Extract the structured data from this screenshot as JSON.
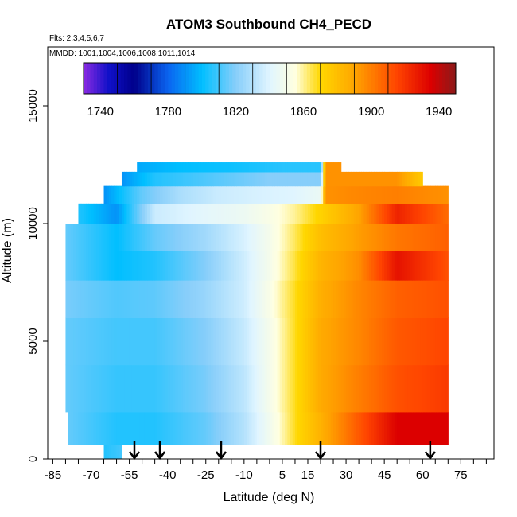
{
  "chart_data": {
    "type": "heatmap",
    "title": "ATOM3 Southbound CH4_PECD",
    "subtitle_flights": "Flts: 2,3,4,5,6,7",
    "subtitle_dates": "MMDD: 1001,1004,1006,1008,1011,1014",
    "xlabel": "Latitude (deg N)",
    "ylabel": "Altitude (m)",
    "xlim": [
      -87,
      88
    ],
    "ylim": [
      0,
      17500
    ],
    "x_ticks": [
      -85,
      -70,
      -55,
      -40,
      -25,
      -10,
      5,
      15,
      30,
      45,
      60,
      75
    ],
    "x_minor_step": 5,
    "y_ticks": [
      0,
      5000,
      10000,
      15000
    ],
    "colorbar": {
      "min": 1730,
      "max": 1950,
      "step": 20,
      "labels": [
        1740,
        1780,
        1820,
        1860,
        1900,
        1940
      ],
      "stops": [
        {
          "v": 1730,
          "c": "#8a2be2"
        },
        {
          "v": 1745,
          "c": "#1010c8"
        },
        {
          "v": 1760,
          "c": "#00008b"
        },
        {
          "v": 1780,
          "c": "#0a64f0"
        },
        {
          "v": 1800,
          "c": "#00bfff"
        },
        {
          "v": 1820,
          "c": "#87cefa"
        },
        {
          "v": 1840,
          "c": "#e0f5ff"
        },
        {
          "v": 1855,
          "c": "#ffffe0"
        },
        {
          "v": 1870,
          "c": "#ffd700"
        },
        {
          "v": 1890,
          "c": "#ffa500"
        },
        {
          "v": 1915,
          "c": "#ff4500"
        },
        {
          "v": 1935,
          "c": "#dc0000"
        },
        {
          "v": 1950,
          "c": "#8b1a1a"
        }
      ]
    },
    "arrow_latitudes": [
      -53,
      -43,
      -19,
      20,
      63
    ],
    "field": {
      "lat_range": [
        -80,
        70
      ],
      "alt_layers": [
        {
          "alt": 250,
          "lat": [
            -65,
            -58
          ],
          "values": [
            1805,
            1810
          ]
        },
        {
          "alt": 1000,
          "lat": [
            -79,
            -60,
            -45,
            -25,
            -10,
            0,
            10,
            20,
            35,
            50,
            70
          ],
          "values": [
            1815,
            1805,
            1805,
            1815,
            1830,
            1848,
            1868,
            1885,
            1910,
            1935,
            1935
          ]
        },
        {
          "alt": 3000,
          "lat": [
            -80,
            -60,
            -45,
            -25,
            -10,
            0,
            10,
            20,
            35,
            50,
            70
          ],
          "values": [
            1815,
            1808,
            1808,
            1818,
            1832,
            1850,
            1868,
            1888,
            1900,
            1912,
            1918
          ]
        },
        {
          "alt": 5000,
          "lat": [
            -80,
            -60,
            -45,
            -25,
            -10,
            0,
            10,
            20,
            35,
            50,
            70
          ],
          "values": [
            1815,
            1810,
            1810,
            1820,
            1834,
            1850,
            1868,
            1888,
            1898,
            1910,
            1915
          ]
        },
        {
          "alt": 7000,
          "lat": [
            -80,
            -60,
            -45,
            -25,
            -10,
            0,
            10,
            20,
            35,
            50,
            70
          ],
          "values": [
            1818,
            1812,
            1814,
            1824,
            1836,
            1852,
            1868,
            1886,
            1898,
            1908,
            1912
          ]
        },
        {
          "alt": 8200,
          "lat": [
            -80,
            -60,
            -45,
            -25,
            -10,
            0,
            10,
            20,
            35,
            50,
            70
          ],
          "values": [
            1815,
            1800,
            1805,
            1820,
            1836,
            1850,
            1866,
            1884,
            1896,
            1930,
            1912
          ]
        },
        {
          "alt": 9500,
          "lat": [
            -80,
            -60,
            -45,
            -25,
            -10,
            0,
            10,
            20,
            35,
            50,
            70
          ],
          "values": [
            1815,
            1800,
            1815,
            1826,
            1838,
            1850,
            1864,
            1880,
            1892,
            1902,
            1908
          ]
        },
        {
          "alt": 10500,
          "lat": [
            -75,
            -60,
            -45,
            -25,
            -10,
            0,
            10,
            20,
            35,
            50,
            70
          ],
          "values": [
            1805,
            1790,
            1835,
            1842,
            1846,
            1852,
            1860,
            1872,
            1890,
            1925,
            1905
          ]
        },
        {
          "alt": 11200,
          "lat": [
            -65,
            -50,
            -35,
            -20,
            -5,
            10,
            20,
            22,
            35,
            50,
            70
          ],
          "values": [
            1790,
            1815,
            1828,
            1835,
            1838,
            1840,
            1845,
            1895,
            1898,
            1900,
            1895
          ]
        },
        {
          "alt": 12000,
          "lat": [
            -58,
            -45,
            -30,
            -15,
            0,
            15,
            20,
            22,
            40,
            50,
            60
          ],
          "values": [
            1790,
            1805,
            1810,
            1815,
            1820,
            1820,
            1820,
            1895,
            1895,
            1895,
            1875
          ]
        },
        {
          "alt": 12400,
          "lat": [
            -52,
            -35,
            -15,
            5,
            20,
            22,
            28
          ],
          "values": [
            1795,
            1800,
            1802,
            1806,
            1806,
            1895,
            1895
          ]
        }
      ]
    }
  }
}
